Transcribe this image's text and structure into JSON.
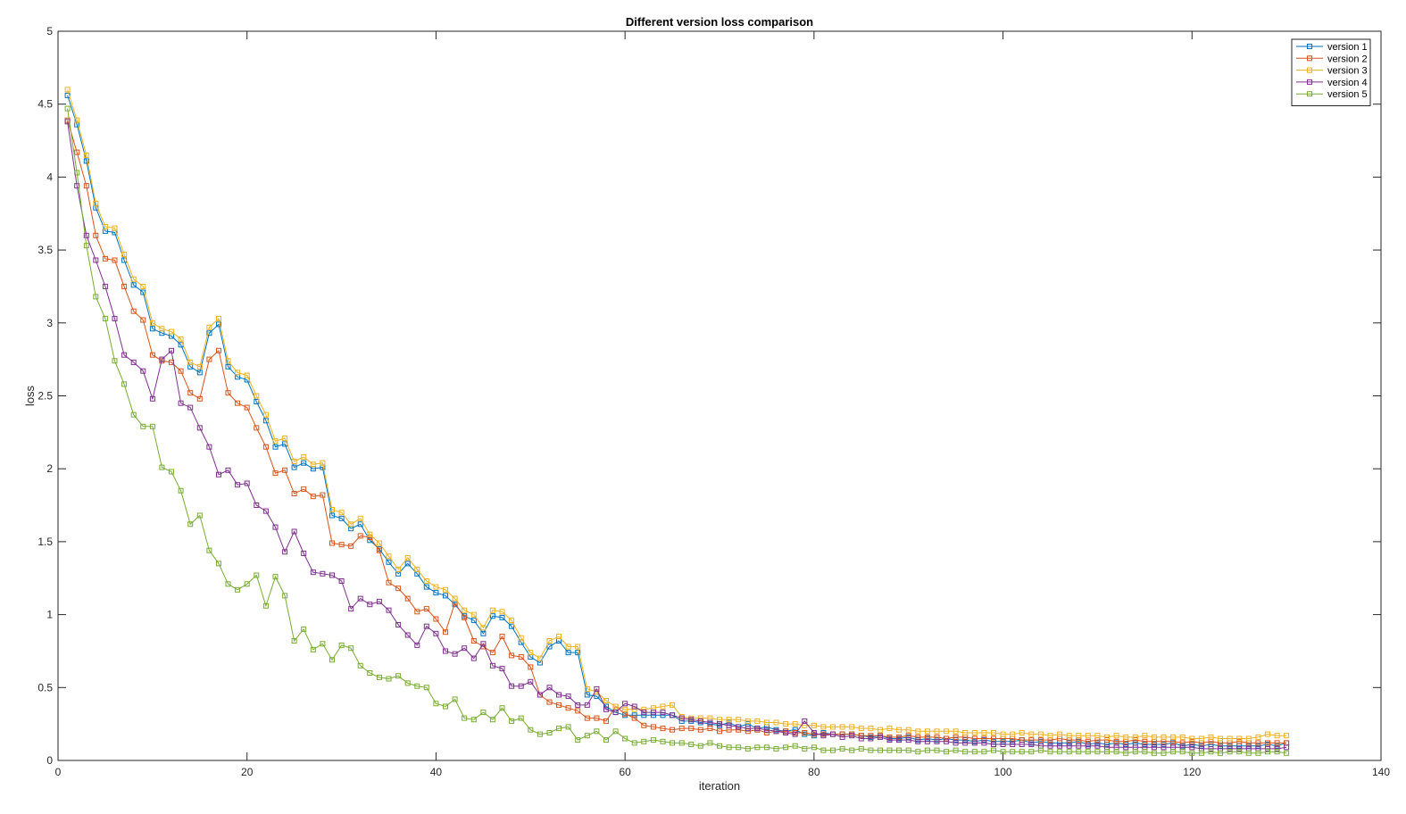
{
  "chart_data": {
    "type": "line",
    "title": "Different version loss comparison",
    "xlabel": "iteration",
    "ylabel": "loss",
    "xlim": [
      0,
      140
    ],
    "ylim": [
      0,
      5
    ],
    "xticks": [
      0,
      20,
      40,
      60,
      80,
      100,
      120,
      140
    ],
    "yticks": [
      0,
      0.5,
      1,
      1.5,
      2,
      2.5,
      3,
      3.5,
      4,
      4.5,
      5
    ],
    "grid": false,
    "legend_position": "top-right",
    "marker": "square",
    "x_start": 1,
    "series": [
      {
        "name": "version 1",
        "color": "#0072bd",
        "values": [
          4.56,
          4.36,
          4.11,
          3.79,
          3.63,
          3.62,
          3.43,
          3.26,
          3.21,
          2.96,
          2.93,
          2.91,
          2.85,
          2.7,
          2.66,
          2.93,
          2.99,
          2.7,
          2.63,
          2.61,
          2.46,
          2.33,
          2.15,
          2.17,
          2.01,
          2.04,
          2.0,
          2.01,
          1.68,
          1.66,
          1.59,
          1.62,
          1.51,
          1.45,
          1.36,
          1.28,
          1.35,
          1.28,
          1.19,
          1.15,
          1.13,
          1.07,
          0.99,
          0.96,
          0.87,
          0.99,
          0.98,
          0.92,
          0.81,
          0.71,
          0.67,
          0.78,
          0.82,
          0.74,
          0.74,
          0.45,
          0.44,
          0.37,
          0.33,
          0.31,
          0.31,
          0.31,
          0.31,
          0.31,
          0.31,
          0.27,
          0.27,
          0.26,
          0.25,
          0.24,
          0.26,
          0.23,
          0.25,
          0.22,
          0.23,
          0.21,
          0.2,
          0.21,
          0.18,
          0.17,
          0.19,
          0.18,
          0.18,
          0.18,
          0.17,
          0.16,
          0.17,
          0.15,
          0.15,
          0.16,
          0.14,
          0.15,
          0.14,
          0.15,
          0.14,
          0.14,
          0.13,
          0.14,
          0.13,
          0.13,
          0.13,
          0.14,
          0.12,
          0.13,
          0.12,
          0.12,
          0.12,
          0.13,
          0.11,
          0.12,
          0.11,
          0.12,
          0.11,
          0.12,
          0.11,
          0.11,
          0.11,
          0.12,
          0.1,
          0.11,
          0.1,
          0.11,
          0.1,
          0.1,
          0.1,
          0.1,
          0.1,
          0.11,
          0.1,
          0.12
        ]
      },
      {
        "name": "version 2",
        "color": "#d95319",
        "values": [
          4.39,
          4.17,
          3.94,
          3.6,
          3.44,
          3.43,
          3.25,
          3.08,
          3.02,
          2.78,
          2.74,
          2.73,
          2.67,
          2.52,
          2.48,
          2.75,
          2.81,
          2.52,
          2.45,
          2.42,
          2.28,
          2.15,
          1.97,
          1.99,
          1.83,
          1.86,
          1.81,
          1.82,
          1.49,
          1.48,
          1.47,
          1.54,
          1.53,
          1.44,
          1.22,
          1.18,
          1.11,
          1.02,
          1.04,
          0.97,
          0.88,
          1.08,
          0.98,
          0.82,
          0.78,
          0.74,
          0.85,
          0.72,
          0.71,
          0.64,
          0.45,
          0.4,
          0.38,
          0.36,
          0.34,
          0.29,
          0.29,
          0.27,
          0.37,
          0.32,
          0.29,
          0.24,
          0.23,
          0.22,
          0.21,
          0.22,
          0.22,
          0.21,
          0.22,
          0.2,
          0.21,
          0.21,
          0.2,
          0.21,
          0.19,
          0.2,
          0.2,
          0.19,
          0.19,
          0.18,
          0.18,
          0.18,
          0.18,
          0.18,
          0.17,
          0.17,
          0.17,
          0.16,
          0.16,
          0.17,
          0.16,
          0.16,
          0.16,
          0.15,
          0.16,
          0.16,
          0.15,
          0.15,
          0.15,
          0.15,
          0.15,
          0.14,
          0.14,
          0.14,
          0.14,
          0.15,
          0.14,
          0.14,
          0.13,
          0.14,
          0.14,
          0.13,
          0.13,
          0.14,
          0.13,
          0.13,
          0.13,
          0.13,
          0.12,
          0.13,
          0.12,
          0.13,
          0.12,
          0.12,
          0.13,
          0.12,
          0.12,
          0.12,
          0.12,
          0.12
        ]
      },
      {
        "name": "version 3",
        "color": "#edb120",
        "values": [
          4.6,
          4.39,
          4.15,
          3.82,
          3.66,
          3.65,
          3.47,
          3.3,
          3.25,
          3.0,
          2.96,
          2.94,
          2.89,
          2.73,
          2.7,
          2.97,
          3.03,
          2.74,
          2.66,
          2.64,
          2.5,
          2.37,
          2.19,
          2.21,
          2.05,
          2.08,
          2.03,
          2.04,
          1.72,
          1.7,
          1.62,
          1.66,
          1.55,
          1.49,
          1.4,
          1.31,
          1.39,
          1.31,
          1.23,
          1.19,
          1.17,
          1.11,
          1.03,
          1.0,
          0.91,
          1.03,
          1.02,
          0.96,
          0.84,
          0.74,
          0.7,
          0.82,
          0.85,
          0.78,
          0.78,
          0.49,
          0.47,
          0.41,
          0.37,
          0.35,
          0.35,
          0.35,
          0.36,
          0.37,
          0.38,
          0.3,
          0.29,
          0.29,
          0.29,
          0.28,
          0.28,
          0.28,
          0.27,
          0.27,
          0.26,
          0.26,
          0.25,
          0.25,
          0.24,
          0.24,
          0.23,
          0.23,
          0.23,
          0.23,
          0.22,
          0.22,
          0.21,
          0.22,
          0.21,
          0.21,
          0.2,
          0.2,
          0.2,
          0.2,
          0.2,
          0.19,
          0.19,
          0.19,
          0.19,
          0.18,
          0.18,
          0.19,
          0.18,
          0.18,
          0.17,
          0.18,
          0.17,
          0.17,
          0.17,
          0.17,
          0.16,
          0.17,
          0.16,
          0.16,
          0.17,
          0.16,
          0.16,
          0.16,
          0.16,
          0.15,
          0.15,
          0.16,
          0.15,
          0.15,
          0.15,
          0.15,
          0.16,
          0.18,
          0.17,
          0.17
        ]
      },
      {
        "name": "version 4",
        "color": "#7e2f8e",
        "values": [
          4.38,
          3.94,
          3.6,
          3.43,
          3.25,
          3.03,
          2.78,
          2.73,
          2.67,
          2.48,
          2.75,
          2.81,
          2.45,
          2.42,
          2.28,
          2.15,
          1.96,
          1.99,
          1.89,
          1.9,
          1.75,
          1.71,
          1.6,
          1.43,
          1.57,
          1.42,
          1.29,
          1.28,
          1.27,
          1.23,
          1.04,
          1.11,
          1.07,
          1.09,
          1.03,
          0.93,
          0.86,
          0.79,
          0.92,
          0.87,
          0.75,
          0.73,
          0.77,
          0.7,
          0.8,
          0.65,
          0.63,
          0.51,
          0.51,
          0.54,
          0.45,
          0.5,
          0.45,
          0.44,
          0.38,
          0.38,
          0.49,
          0.35,
          0.33,
          0.39,
          0.37,
          0.33,
          0.33,
          0.33,
          0.31,
          0.29,
          0.28,
          0.27,
          0.26,
          0.25,
          0.24,
          0.23,
          0.22,
          0.22,
          0.21,
          0.2,
          0.19,
          0.18,
          0.27,
          0.19,
          0.17,
          0.18,
          0.16,
          0.17,
          0.15,
          0.15,
          0.16,
          0.14,
          0.14,
          0.14,
          0.13,
          0.13,
          0.13,
          0.13,
          0.12,
          0.12,
          0.12,
          0.12,
          0.11,
          0.11,
          0.11,
          0.11,
          0.11,
          0.1,
          0.1,
          0.1,
          0.1,
          0.1,
          0.1,
          0.1,
          0.09,
          0.09,
          0.09,
          0.09,
          0.09,
          0.09,
          0.09,
          0.09,
          0.09,
          0.09,
          0.08,
          0.08,
          0.08,
          0.08,
          0.08,
          0.08,
          0.08,
          0.08,
          0.08,
          0.09
        ]
      },
      {
        "name": "version 5",
        "color": "#77ac30",
        "values": [
          4.47,
          4.03,
          3.53,
          3.18,
          3.03,
          2.74,
          2.58,
          2.37,
          2.29,
          2.29,
          2.01,
          1.98,
          1.85,
          1.62,
          1.68,
          1.44,
          1.35,
          1.21,
          1.17,
          1.21,
          1.27,
          1.06,
          1.26,
          1.13,
          0.82,
          0.9,
          0.76,
          0.8,
          0.69,
          0.79,
          0.77,
          0.65,
          0.6,
          0.57,
          0.56,
          0.58,
          0.53,
          0.51,
          0.5,
          0.39,
          0.37,
          0.42,
          0.29,
          0.28,
          0.33,
          0.28,
          0.36,
          0.27,
          0.29,
          0.21,
          0.18,
          0.19,
          0.22,
          0.23,
          0.14,
          0.17,
          0.2,
          0.14,
          0.2,
          0.15,
          0.12,
          0.13,
          0.14,
          0.13,
          0.12,
          0.12,
          0.11,
          0.1,
          0.12,
          0.1,
          0.09,
          0.09,
          0.08,
          0.09,
          0.09,
          0.08,
          0.09,
          0.1,
          0.08,
          0.09,
          0.07,
          0.07,
          0.08,
          0.07,
          0.08,
          0.07,
          0.07,
          0.07,
          0.07,
          0.07,
          0.06,
          0.07,
          0.07,
          0.06,
          0.07,
          0.06,
          0.06,
          0.06,
          0.07,
          0.06,
          0.06,
          0.06,
          0.06,
          0.07,
          0.06,
          0.06,
          0.06,
          0.06,
          0.06,
          0.06,
          0.06,
          0.06,
          0.05,
          0.06,
          0.06,
          0.05,
          0.05,
          0.06,
          0.06,
          0.05,
          0.05,
          0.06,
          0.05,
          0.06,
          0.06,
          0.05,
          0.05,
          0.06,
          0.06,
          0.05
        ]
      }
    ]
  }
}
